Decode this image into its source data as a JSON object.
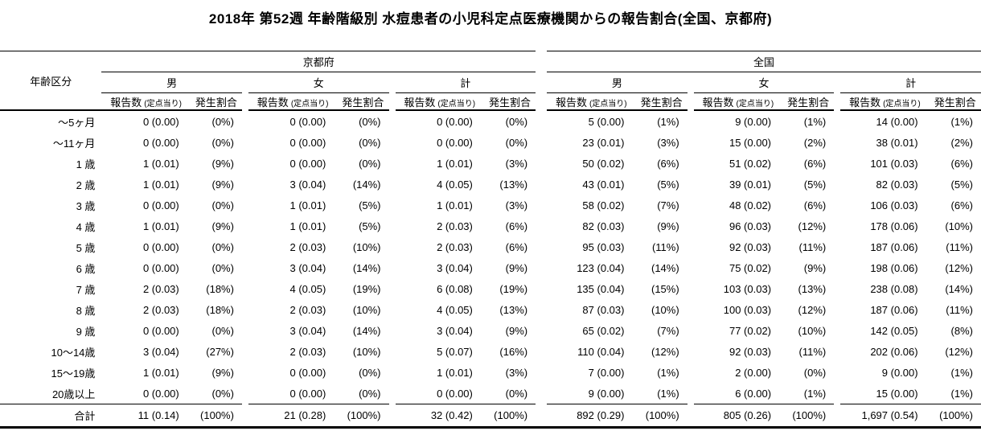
{
  "title": "2018年 第52週 年齢階級別 水痘患者の小児科定点医療機関からの報告割合(全国、京都府)",
  "chart_data": {
    "type": "table",
    "title": "2018年 第52週 年齢階級別 水痘患者の小児科定点医療機関からの報告割合(全国、京都府)",
    "corner_header": "年齢区分",
    "sections": [
      "京都府",
      "全国"
    ],
    "gender_headers": [
      "男",
      "女",
      "計"
    ],
    "measure_headers": {
      "reports": "報告数",
      "reports_note": "(定点当り)",
      "rate": "発生割合"
    },
    "rows": [
      {
        "age": "～5ヶ月",
        "cells": [
          "0 (0.00)",
          "(0%)",
          "0 (0.00)",
          "(0%)",
          "0 (0.00)",
          "(0%)",
          "5 (0.00)",
          "(1%)",
          "9 (0.00)",
          "(1%)",
          "14 (0.00)",
          "(1%)"
        ]
      },
      {
        "age": "～11ヶ月",
        "cells": [
          "0 (0.00)",
          "(0%)",
          "0 (0.00)",
          "(0%)",
          "0 (0.00)",
          "(0%)",
          "23 (0.01)",
          "(3%)",
          "15 (0.00)",
          "(2%)",
          "38 (0.01)",
          "(2%)"
        ]
      },
      {
        "age": "1 歳",
        "cells": [
          "1 (0.01)",
          "(9%)",
          "0 (0.00)",
          "(0%)",
          "1 (0.01)",
          "(3%)",
          "50 (0.02)",
          "(6%)",
          "51 (0.02)",
          "(6%)",
          "101 (0.03)",
          "(6%)"
        ]
      },
      {
        "age": "2 歳",
        "cells": [
          "1 (0.01)",
          "(9%)",
          "3 (0.04)",
          "(14%)",
          "4 (0.05)",
          "(13%)",
          "43 (0.01)",
          "(5%)",
          "39 (0.01)",
          "(5%)",
          "82 (0.03)",
          "(5%)"
        ]
      },
      {
        "age": "3 歳",
        "cells": [
          "0 (0.00)",
          "(0%)",
          "1 (0.01)",
          "(5%)",
          "1 (0.01)",
          "(3%)",
          "58 (0.02)",
          "(7%)",
          "48 (0.02)",
          "(6%)",
          "106 (0.03)",
          "(6%)"
        ]
      },
      {
        "age": "4 歳",
        "cells": [
          "1 (0.01)",
          "(9%)",
          "1 (0.01)",
          "(5%)",
          "2 (0.03)",
          "(6%)",
          "82 (0.03)",
          "(9%)",
          "96 (0.03)",
          "(12%)",
          "178 (0.06)",
          "(10%)"
        ]
      },
      {
        "age": "5 歳",
        "cells": [
          "0 (0.00)",
          "(0%)",
          "2 (0.03)",
          "(10%)",
          "2 (0.03)",
          "(6%)",
          "95 (0.03)",
          "(11%)",
          "92 (0.03)",
          "(11%)",
          "187 (0.06)",
          "(11%)"
        ]
      },
      {
        "age": "6 歳",
        "cells": [
          "0 (0.00)",
          "(0%)",
          "3 (0.04)",
          "(14%)",
          "3 (0.04)",
          "(9%)",
          "123 (0.04)",
          "(14%)",
          "75 (0.02)",
          "(9%)",
          "198 (0.06)",
          "(12%)"
        ]
      },
      {
        "age": "7 歳",
        "cells": [
          "2 (0.03)",
          "(18%)",
          "4 (0.05)",
          "(19%)",
          "6 (0.08)",
          "(19%)",
          "135 (0.04)",
          "(15%)",
          "103 (0.03)",
          "(13%)",
          "238 (0.08)",
          "(14%)"
        ]
      },
      {
        "age": "8 歳",
        "cells": [
          "2 (0.03)",
          "(18%)",
          "2 (0.03)",
          "(10%)",
          "4 (0.05)",
          "(13%)",
          "87 (0.03)",
          "(10%)",
          "100 (0.03)",
          "(12%)",
          "187 (0.06)",
          "(11%)"
        ]
      },
      {
        "age": "9 歳",
        "cells": [
          "0 (0.00)",
          "(0%)",
          "3 (0.04)",
          "(14%)",
          "3 (0.04)",
          "(9%)",
          "65 (0.02)",
          "(7%)",
          "77 (0.02)",
          "(10%)",
          "142 (0.05)",
          "(8%)"
        ]
      },
      {
        "age": "10～14歳",
        "cells": [
          "3 (0.04)",
          "(27%)",
          "2 (0.03)",
          "(10%)",
          "5 (0.07)",
          "(16%)",
          "110 (0.04)",
          "(12%)",
          "92 (0.03)",
          "(11%)",
          "202 (0.06)",
          "(12%)"
        ]
      },
      {
        "age": "15～19歳",
        "cells": [
          "1 (0.01)",
          "(9%)",
          "0 (0.00)",
          "(0%)",
          "1 (0.01)",
          "(3%)",
          "7 (0.00)",
          "(1%)",
          "2 (0.00)",
          "(0%)",
          "9 (0.00)",
          "(1%)"
        ]
      },
      {
        "age": "20歳以上",
        "cells": [
          "0 (0.00)",
          "(0%)",
          "0 (0.00)",
          "(0%)",
          "0 (0.00)",
          "(0%)",
          "9 (0.00)",
          "(1%)",
          "6 (0.00)",
          "(1%)",
          "15 (0.00)",
          "(1%)"
        ]
      }
    ],
    "total_row": {
      "age": "合計",
      "cells": [
        "11 (0.14)",
        "(100%)",
        "21 (0.28)",
        "(100%)",
        "32 (0.42)",
        "(100%)",
        "892 (0.29)",
        "(100%)",
        "805 (0.26)",
        "(100%)",
        "1,697 (0.54)",
        "(100%)"
      ]
    }
  }
}
